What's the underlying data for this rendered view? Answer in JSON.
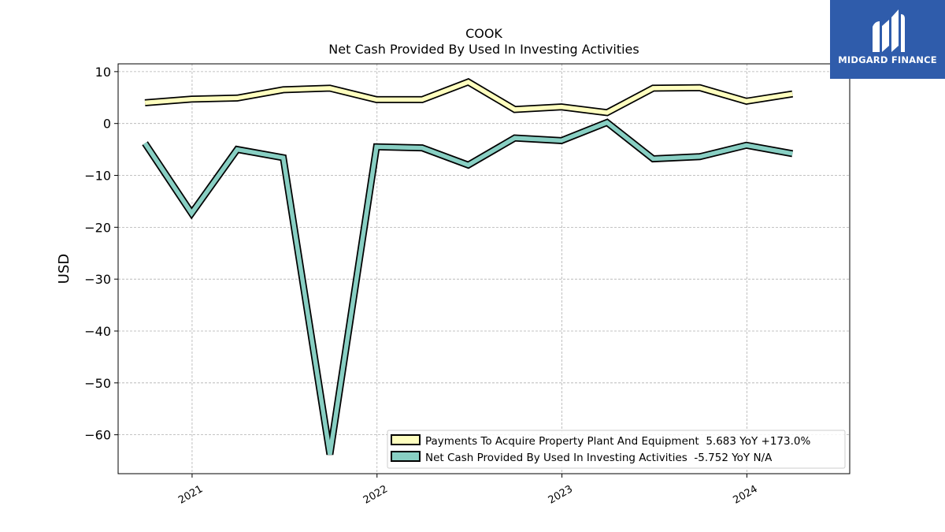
{
  "logo": {
    "text": "MIDGARD FINANCE"
  },
  "chart_data": {
    "type": "line",
    "title": "COOK",
    "subtitle": "Net Cash Provided By Used In Investing Activities",
    "xlabel": "",
    "ylabel": "USD",
    "ylim": [
      -67.5,
      11.5
    ],
    "yticks": [
      10,
      0,
      -10,
      -20,
      -30,
      -40,
      -50,
      -60
    ],
    "ytick_labels": [
      "10",
      "0",
      "−10",
      "−20",
      "−30",
      "−40",
      "−50",
      "−60"
    ],
    "xlim": [
      "2020-08-08",
      "2024-07-22"
    ],
    "xticks": [
      "2021-01-01",
      "2022-01-01",
      "2023-01-01",
      "2024-01-01"
    ],
    "xtick_labels": [
      "2021",
      "2022",
      "2023",
      "2024"
    ],
    "grid": true,
    "legend_position": "lower-right",
    "x": [
      "2020-09-30",
      "2020-12-31",
      "2021-03-31",
      "2021-06-30",
      "2021-09-30",
      "2021-12-31",
      "2022-03-31",
      "2022-06-30",
      "2022-09-30",
      "2022-12-31",
      "2023-03-31",
      "2023-06-30",
      "2023-09-30",
      "2023-12-31",
      "2024-03-31"
    ],
    "series": [
      {
        "name": "Payments To Acquire Property Plant And Equipment  5.683 YoY +173.0%",
        "color": "#ffffbf",
        "values": [
          4.0,
          4.7,
          4.9,
          6.5,
          6.8,
          4.6,
          4.6,
          8.0,
          2.7,
          3.2,
          2.1,
          6.8,
          6.9,
          4.3,
          5.7
        ]
      },
      {
        "name": "Net Cash Provided By Used In Investing Activities  -5.752 YoY N/A",
        "color": "#88cfc3",
        "values": [
          -3.8,
          -17.3,
          -5.0,
          -6.6,
          -63.8,
          -4.5,
          -4.7,
          -8.0,
          -2.8,
          -3.3,
          0.2,
          -6.8,
          -6.4,
          -4.2,
          -5.8
        ]
      }
    ]
  }
}
